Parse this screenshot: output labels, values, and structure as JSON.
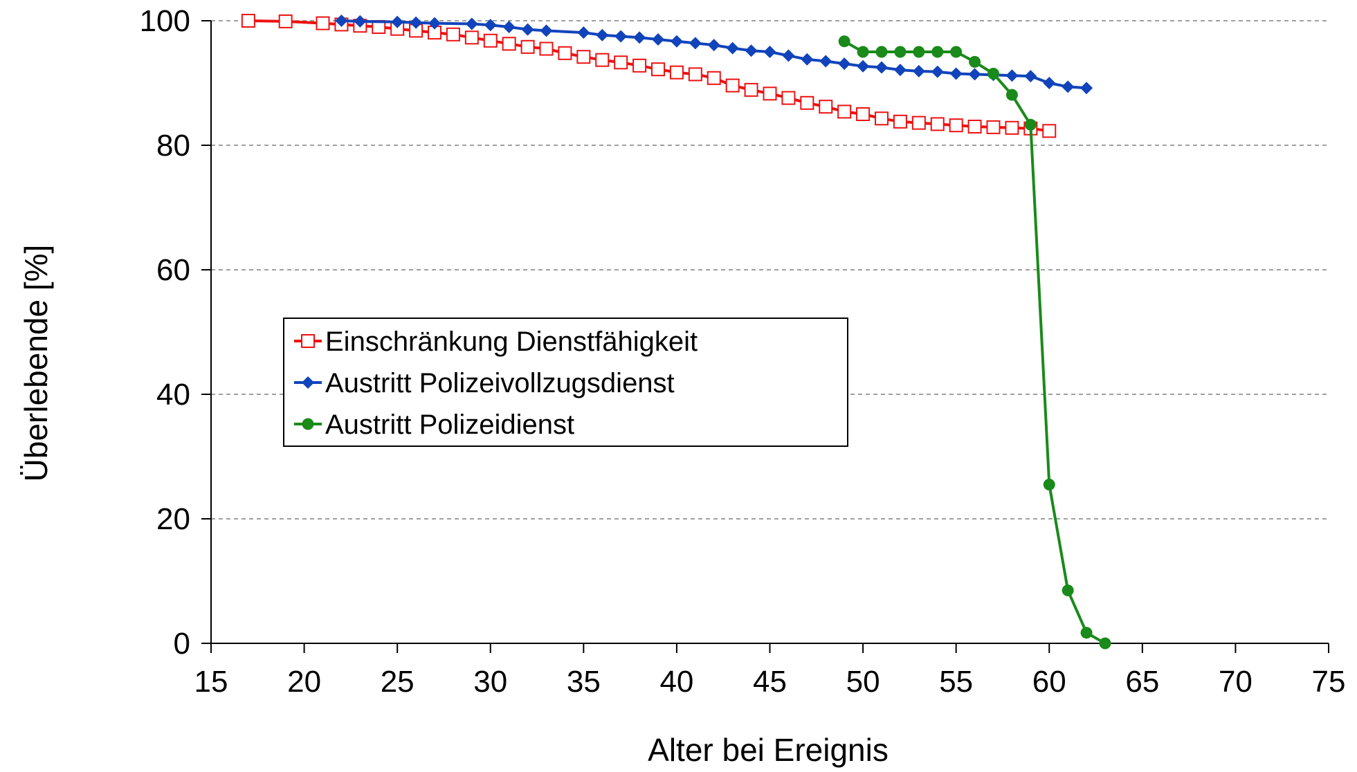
{
  "chart_data": {
    "type": "line",
    "title": "",
    "xlabel": "Alter bei Ereignis",
    "ylabel": "Überlebende [%]",
    "xlim": [
      15,
      75
    ],
    "ylim": [
      0,
      100
    ],
    "xticks": [
      15,
      20,
      25,
      30,
      35,
      40,
      45,
      50,
      55,
      60,
      65,
      70,
      75
    ],
    "yticks": [
      0,
      20,
      40,
      60,
      80,
      100
    ],
    "grid": "horizontal dashed",
    "legend_position": "center-left",
    "series": [
      {
        "name": "Einschränkung Dienstfähigkeit",
        "color": "#ee1111",
        "marker": "open-square",
        "points": [
          [
            17,
            100
          ],
          [
            19,
            99.9
          ],
          [
            21,
            99.6
          ],
          [
            22,
            99.4
          ],
          [
            23,
            99.2
          ],
          [
            24,
            99.0
          ],
          [
            25,
            98.7
          ],
          [
            26,
            98.4
          ],
          [
            27,
            98.1
          ],
          [
            28,
            97.8
          ],
          [
            29,
            97.3
          ],
          [
            30,
            96.8
          ],
          [
            31,
            96.3
          ],
          [
            32,
            95.8
          ],
          [
            33,
            95.5
          ],
          [
            34,
            94.8
          ],
          [
            35,
            94.2
          ],
          [
            36,
            93.7
          ],
          [
            37,
            93.3
          ],
          [
            38,
            92.8
          ],
          [
            39,
            92.2
          ],
          [
            40,
            91.7
          ],
          [
            41,
            91.4
          ],
          [
            42,
            90.8
          ],
          [
            43,
            89.6
          ],
          [
            44,
            88.9
          ],
          [
            45,
            88.3
          ],
          [
            46,
            87.6
          ],
          [
            47,
            86.8
          ],
          [
            48,
            86.2
          ],
          [
            49,
            85.4
          ],
          [
            50,
            85.0
          ],
          [
            51,
            84.3
          ],
          [
            52,
            83.8
          ],
          [
            53,
            83.6
          ],
          [
            54,
            83.4
          ],
          [
            55,
            83.2
          ],
          [
            56,
            83.0
          ],
          [
            57,
            82.9
          ],
          [
            58,
            82.8
          ],
          [
            59,
            82.7
          ],
          [
            60,
            82.3
          ]
        ]
      },
      {
        "name": "Austritt Polizeivollzugsdienst",
        "color": "#1144bb",
        "marker": "diamond",
        "points": [
          [
            22,
            100
          ],
          [
            23,
            99.9
          ],
          [
            25,
            99.8
          ],
          [
            26,
            99.7
          ],
          [
            27,
            99.6
          ],
          [
            29,
            99.5
          ],
          [
            30,
            99.3
          ],
          [
            31,
            99.0
          ],
          [
            32,
            98.6
          ],
          [
            33,
            98.4
          ],
          [
            35,
            98.1
          ],
          [
            36,
            97.7
          ],
          [
            37,
            97.5
          ],
          [
            38,
            97.3
          ],
          [
            39,
            97.0
          ],
          [
            40,
            96.7
          ],
          [
            41,
            96.4
          ],
          [
            42,
            96.1
          ],
          [
            43,
            95.6
          ],
          [
            44,
            95.2
          ],
          [
            45,
            95.0
          ],
          [
            46,
            94.4
          ],
          [
            47,
            93.8
          ],
          [
            48,
            93.5
          ],
          [
            49,
            93.1
          ],
          [
            50,
            92.7
          ],
          [
            51,
            92.5
          ],
          [
            52,
            92.1
          ],
          [
            53,
            91.9
          ],
          [
            54,
            91.8
          ],
          [
            55,
            91.5
          ],
          [
            56,
            91.4
          ],
          [
            57,
            91.3
          ],
          [
            58,
            91.2
          ],
          [
            59,
            91.1
          ],
          [
            60,
            90.0
          ],
          [
            61,
            89.4
          ],
          [
            62,
            89.2
          ]
        ]
      },
      {
        "name": "Austritt Polizeidienst",
        "color": "#1a8a1a",
        "marker": "circle",
        "points": [
          [
            49,
            96.7
          ],
          [
            50,
            95.0
          ],
          [
            51,
            95.0
          ],
          [
            52,
            95.0
          ],
          [
            53,
            95.0
          ],
          [
            54,
            95.0
          ],
          [
            55,
            95.0
          ],
          [
            56,
            93.4
          ],
          [
            57,
            91.5
          ],
          [
            58,
            88.1
          ],
          [
            59,
            83.3
          ],
          [
            60,
            25.5
          ],
          [
            61,
            8.5
          ],
          [
            62,
            1.7
          ],
          [
            63,
            0
          ]
        ]
      }
    ]
  }
}
